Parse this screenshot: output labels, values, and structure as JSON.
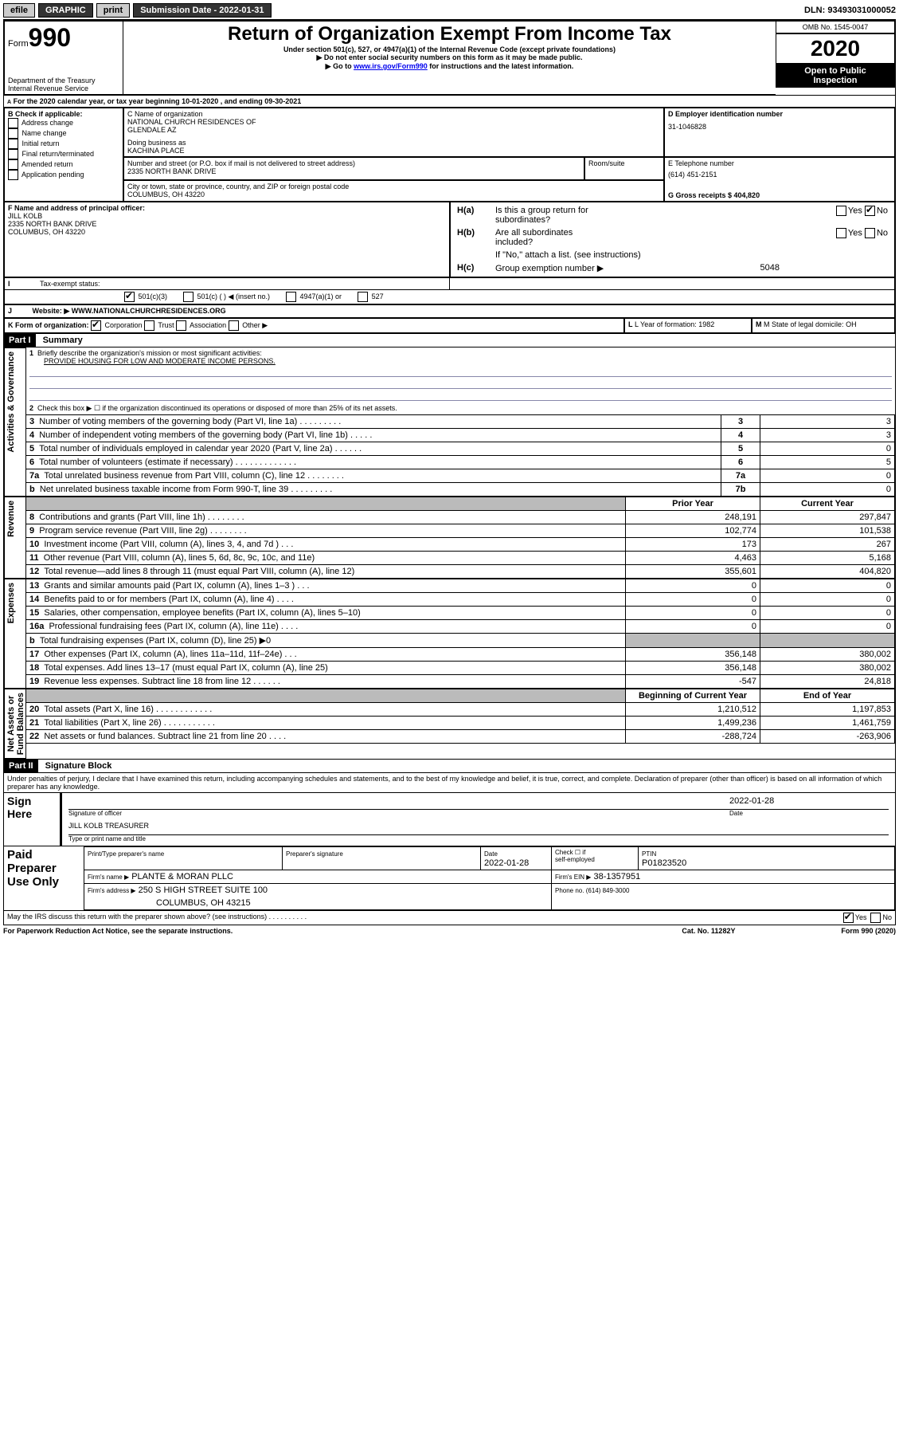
{
  "topbar": {
    "efile": "efile",
    "graphic": "GRAPHIC",
    "print": "print",
    "sub_date_label": "Submission Date - 2022-01-31",
    "dln": "DLN: 93493031000052"
  },
  "header": {
    "form_label": "Form",
    "form_number": "990",
    "title": "Return of Organization Exempt From Income Tax",
    "subtitle": "Under section 501(c), 527, or 4947(a)(1) of the Internal Revenue Code (except private foundations)",
    "note1": "Do not enter social security numbers on this form as it may be made public.",
    "note2_prefix": "Go to ",
    "note2_link": "www.irs.gov/Form990",
    "note2_suffix": " for instructions and the latest information.",
    "dept": "Department of the Treasury\nInternal Revenue Service",
    "omb": "OMB No. 1545-0047",
    "year": "2020",
    "open": "Open to Public\nInspection"
  },
  "section_a": {
    "line_a": "For the 2020 calendar year, or tax year beginning 10-01-2020   , and ending 09-30-2021",
    "b_label": "B Check if applicable:",
    "b_items": [
      "Address change",
      "Name change",
      "Initial return",
      "Final return/terminated",
      "Amended return",
      "Application pending"
    ],
    "c_label": "C Name of organization",
    "c_name": "NATIONAL CHURCH RESIDENCES OF\nGLENDALE AZ",
    "dba_label": "Doing business as",
    "dba": "KACHINA PLACE",
    "addr_label": "Number and street (or P.O. box if mail is not delivered to street address)",
    "addr": "2335 NORTH BANK DRIVE",
    "room_label": "Room/suite",
    "city_label": "City or town, state or province, country, and ZIP or foreign postal code",
    "city": "COLUMBUS, OH  43220",
    "d_label": "D Employer identification number",
    "d_ein": "31-1046828",
    "e_label": "E Telephone number",
    "e_phone": "(614) 451-2151",
    "g_label": "G Gross receipts $ 404,820",
    "f_label": "F  Name and address of principal officer:",
    "f_name": "JILL KOLB",
    "f_addr1": "2335 NORTH BANK DRIVE",
    "f_addr2": "COLUMBUS, OH  43220",
    "ha_label": "Is this a group return for\nsubordinates?",
    "ha_prefix": "H(a)",
    "yes": "Yes",
    "no": "No",
    "hb_prefix": "H(b)",
    "hb_label": "Are all subordinates\nincluded?",
    "hb_note": "If \"No,\" attach a list. (see instructions)",
    "hc_prefix": "H(c)",
    "hc_label": "Group exemption number ▶",
    "hc_val": "5048",
    "i_label": "Tax-exempt status:",
    "i_501c3": "501(c)(3)",
    "i_501c": "501(c) (   ) ◀ (insert no.)",
    "i_4947": "4947(a)(1) or",
    "i_527": "527",
    "j_label": "Website: ▶",
    "j_url": "WWW.NATIONALCHURCHRESIDENCES.ORG",
    "k_label": "K Form of organization:",
    "k_corp": "Corporation",
    "k_trust": "Trust",
    "k_assoc": "Association",
    "k_other": "Other ▶",
    "l_label": "L Year of formation: 1982",
    "m_label": "M State of legal domicile: OH"
  },
  "part1": {
    "header": "Part I",
    "title": "Summary",
    "side_ag": "Activities & Governance",
    "side_rev": "Revenue",
    "side_exp": "Expenses",
    "side_net": "Net Assets or\nFund Balances",
    "q1": "Briefly describe the organization's mission or most significant activities:",
    "q1_ans": "PROVIDE HOUSING FOR LOW AND MODERATE INCOME PERSONS.",
    "q2": "Check this box ▶ ☐  if the organization discontinued its operations or disposed of more than 25% of its net assets.",
    "rows_gov": [
      {
        "n": "3",
        "t": "Number of voting members of the governing body (Part VI, line 1a)  .   .   .   .   .   .   .   .   .",
        "box": "3",
        "v": "3"
      },
      {
        "n": "4",
        "t": "Number of independent voting members of the governing body (Part VI, line 1b)  .   .   .   .   .",
        "box": "4",
        "v": "3"
      },
      {
        "n": "5",
        "t": "Total number of individuals employed in calendar year 2020 (Part V, line 2a)  .   .   .   .   .   .",
        "box": "5",
        "v": "0"
      },
      {
        "n": "6",
        "t": "Total number of volunteers (estimate if necessary)  .   .   .   .   .   .   .   .   .   .   .   .   .",
        "box": "6",
        "v": "5"
      },
      {
        "n": "7a",
        "t": "Total unrelated business revenue from Part VIII, column (C), line 12  .   .   .   .   .   .   .   .",
        "box": "7a",
        "v": "0"
      },
      {
        "n": "b",
        "t": "Net unrelated business taxable income from Form 990-T, line 39  .   .   .   .   .   .   .   .   .",
        "box": "7b",
        "v": "0"
      }
    ],
    "prior_year": "Prior Year",
    "current_year": "Current Year",
    "rows_rev": [
      {
        "n": "8",
        "t": "Contributions and grants (Part VIII, line 1h)  .   .   .   .   .   .   .   .",
        "p": "248,191",
        "c": "297,847"
      },
      {
        "n": "9",
        "t": "Program service revenue (Part VIII, line 2g)  .   .   .   .   .   .   .   .",
        "p": "102,774",
        "c": "101,538"
      },
      {
        "n": "10",
        "t": "Investment income (Part VIII, column (A), lines 3, 4, and 7d )  .   .   .",
        "p": "173",
        "c": "267"
      },
      {
        "n": "11",
        "t": "Other revenue (Part VIII, column (A), lines 5, 6d, 8c, 9c, 10c, and 11e)",
        "p": "4,463",
        "c": "5,168"
      },
      {
        "n": "12",
        "t": "Total revenue—add lines 8 through 11 (must equal Part VIII, column (A), line 12)",
        "p": "355,601",
        "c": "404,820"
      }
    ],
    "rows_exp": [
      {
        "n": "13",
        "t": "Grants and similar amounts paid (Part IX, column (A), lines 1–3 )  .   .   .",
        "p": "0",
        "c": "0"
      },
      {
        "n": "14",
        "t": "Benefits paid to or for members (Part IX, column (A), line 4)  .   .   .   .",
        "p": "0",
        "c": "0"
      },
      {
        "n": "15",
        "t": "Salaries, other compensation, employee benefits (Part IX, column (A), lines 5–10)",
        "p": "0",
        "c": "0"
      },
      {
        "n": "16a",
        "t": "Professional fundraising fees (Part IX, column (A), line 11e)  .   .   .   .",
        "p": "0",
        "c": "0"
      },
      {
        "n": "b",
        "t": "Total fundraising expenses (Part IX, column (D), line 25) ▶0",
        "p": "",
        "c": "",
        "shade": true
      },
      {
        "n": "17",
        "t": "Other expenses (Part IX, column (A), lines 11a–11d, 11f–24e)  .   .   .",
        "p": "356,148",
        "c": "380,002"
      },
      {
        "n": "18",
        "t": "Total expenses. Add lines 13–17 (must equal Part IX, column (A), line 25)",
        "p": "356,148",
        "c": "380,002"
      },
      {
        "n": "19",
        "t": "Revenue less expenses. Subtract line 18 from line 12  .   .   .   .   .   .",
        "p": "-547",
        "c": "24,818"
      }
    ],
    "boy": "Beginning of Current Year",
    "eoy": "End of Year",
    "rows_net": [
      {
        "n": "20",
        "t": "Total assets (Part X, line 16)  .   .   .   .   .   .   .   .   .   .   .   .",
        "p": "1,210,512",
        "c": "1,197,853"
      },
      {
        "n": "21",
        "t": "Total liabilities (Part X, line 26)  .   .   .   .   .   .   .   .   .   .   .",
        "p": "1,499,236",
        "c": "1,461,759"
      },
      {
        "n": "22",
        "t": "Net assets or fund balances. Subtract line 21 from line 20  .   .   .   .",
        "p": "-288,724",
        "c": "-263,906"
      }
    ]
  },
  "part2": {
    "header": "Part II",
    "title": "Signature Block",
    "declaration": "Under penalties of perjury, I declare that I have examined this return, including accompanying schedules and statements, and to the best of my knowledge and belief, it is true, correct, and complete. Declaration of preparer (other than officer) is based on all information of which preparer has any knowledge.",
    "sign_here": "Sign\nHere",
    "sig_officer": "Signature of officer",
    "sig_date": "2022-01-28",
    "date_label": "Date",
    "officer_name": "JILL KOLB  TREASURER",
    "type_name": "Type or print name and title",
    "paid": "Paid\nPreparer\nUse Only",
    "prep_name_label": "Print/Type preparer's name",
    "prep_sig_label": "Preparer's signature",
    "prep_date_label": "Date",
    "prep_date": "2022-01-28",
    "prep_check": "Check ☐ if\nself-employed",
    "ptin_label": "PTIN",
    "ptin": "P01823520",
    "firm_name_label": "Firm's name    ▶",
    "firm_name": "PLANTE & MORAN PLLC",
    "firm_ein_label": "Firm's EIN ▶",
    "firm_ein": "38-1357951",
    "firm_addr_label": "Firm's address ▶",
    "firm_addr1": "250 S HIGH STREET SUITE 100",
    "firm_addr2": "COLUMBUS, OH  43215",
    "firm_phone_label": "Phone no. (614) 849-3000",
    "discuss": "May the IRS discuss this return with the preparer shown above? (see instructions)  .   .   .   .   .   .   .   .   .   .",
    "discuss_yes": "Yes",
    "discuss_no": "No"
  },
  "footer": {
    "paperwork": "For Paperwork Reduction Act Notice, see the separate instructions.",
    "cat": "Cat. No. 11282Y",
    "form": "Form 990 (2020)"
  }
}
